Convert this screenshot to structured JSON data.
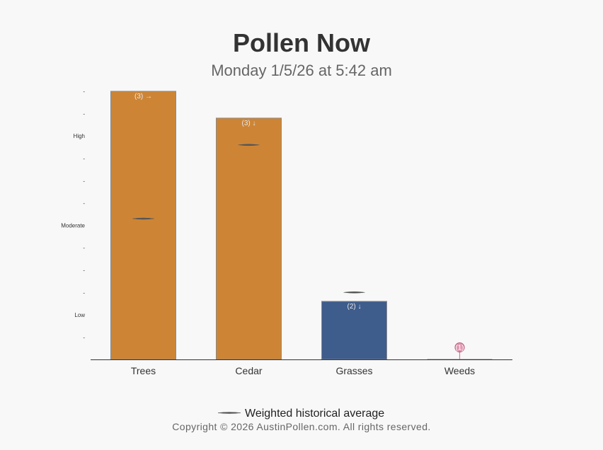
{
  "title": "Pollen Now",
  "subtitle": "Monday 1/5/26 at 5:42 am",
  "copyright": "Copyright © 2026 AustinPollen.com.  All rights reserved.",
  "colors": {
    "high": "#cd8535",
    "low": "#3e5c8c",
    "minimal": "#d97a9a",
    "avg_line": "#555555",
    "axis": "#333333"
  },
  "chart_data": {
    "type": "bar",
    "categories": [
      "Trees",
      "Cedar",
      "Grasses",
      "Weeds"
    ],
    "values": [
      12,
      10.8,
      2.6,
      0
    ],
    "historical_average": [
      6.3,
      9.6,
      3.0,
      null
    ],
    "bar_labels": [
      "(3) →",
      "(3) ↓",
      "(2) ↓",
      "(1)"
    ],
    "bar_colors": [
      "#cd8535",
      "#cd8535",
      "#3e5c8c",
      "#d97a9a"
    ],
    "ylim": [
      0,
      12
    ],
    "y_ticks": [
      {
        "value": 1,
        "label": "-"
      },
      {
        "value": 2,
        "label": "Low"
      },
      {
        "value": 3,
        "label": "-"
      },
      {
        "value": 4,
        "label": "-"
      },
      {
        "value": 5,
        "label": "-"
      },
      {
        "value": 6,
        "label": "Moderate"
      },
      {
        "value": 7,
        "label": "-"
      },
      {
        "value": 8,
        "label": "-"
      },
      {
        "value": 9,
        "label": "-"
      },
      {
        "value": 10,
        "label": "High"
      },
      {
        "value": 11,
        "label": "-"
      },
      {
        "value": 12,
        "label": "-"
      }
    ],
    "legend": {
      "label": "Weighted historical average",
      "position": "bottom"
    },
    "grid": false
  }
}
